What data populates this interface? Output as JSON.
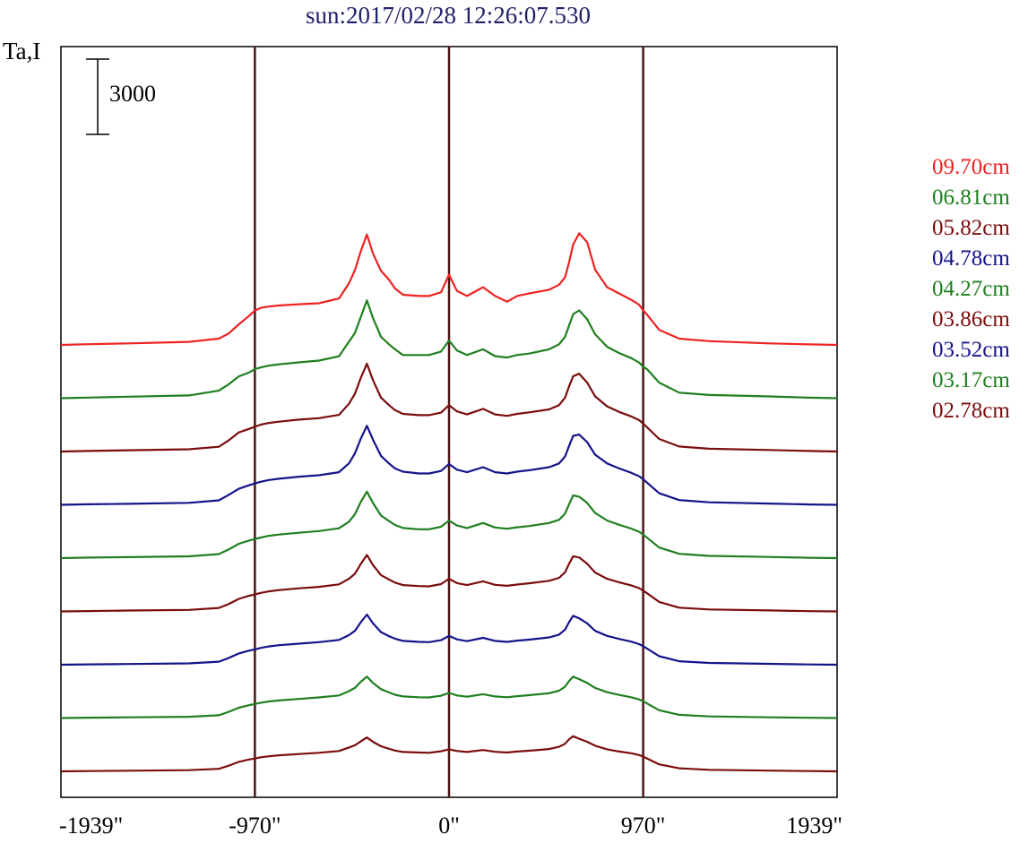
{
  "chart_data": {
    "type": "line",
    "title": "sun:2017/02/28 12:26:07.530",
    "ylabel": "Ta,I",
    "scale_bar_label": "3000",
    "scale_bar_value": 3000,
    "xlim": [
      -1939,
      1939
    ],
    "x_ticks": [
      {
        "value": -1939,
        "label": "-1939\""
      },
      {
        "value": -970,
        "label": "-970\""
      },
      {
        "value": 0,
        "label": "0\""
      },
      {
        "value": 970,
        "label": "970\""
      },
      {
        "value": 1939,
        "label": "1939\""
      }
    ],
    "reference_lines": [
      -970,
      0,
      970
    ],
    "grid": false,
    "legend_position": "right",
    "x": [
      -1939,
      -1800,
      -1600,
      -1300,
      -1150,
      -1100,
      -1050,
      -1000,
      -970,
      -940,
      -900,
      -850,
      -750,
      -650,
      -550,
      -500,
      -470,
      -440,
      -410,
      -380,
      -340,
      -300,
      -270,
      -230,
      -150,
      -100,
      -40,
      0,
      40,
      90,
      170,
      230,
      290,
      340,
      400,
      500,
      550,
      580,
      600,
      620,
      650,
      690,
      730,
      790,
      850,
      910,
      950,
      970,
      990,
      1050,
      1150,
      1300,
      1600,
      1800,
      1939
    ],
    "series": [
      {
        "name": "09.70cm",
        "color": "#ee2222",
        "values": [
          0,
          30,
          60,
          120,
          250,
          460,
          820,
          1150,
          1370,
          1480,
          1530,
          1570,
          1620,
          1660,
          1850,
          2450,
          2980,
          3750,
          4400,
          3650,
          2950,
          2600,
          2250,
          2000,
          1950,
          1950,
          2100,
          2800,
          2150,
          1950,
          2300,
          1950,
          1720,
          1950,
          2050,
          2200,
          2400,
          2700,
          3300,
          4000,
          4450,
          4100,
          3000,
          2300,
          2050,
          1800,
          1600,
          1380,
          1200,
          600,
          250,
          150,
          60,
          20,
          0
        ]
      },
      {
        "name": "06.81cm",
        "color": "#1f7f1f",
        "values": [
          0,
          25,
          60,
          110,
          300,
          560,
          870,
          1020,
          1160,
          1230,
          1300,
          1350,
          1430,
          1500,
          1670,
          2250,
          2600,
          3250,
          3900,
          3200,
          2450,
          2150,
          1950,
          1720,
          1720,
          1720,
          1860,
          2300,
          1900,
          1720,
          1950,
          1680,
          1620,
          1720,
          1780,
          1950,
          2150,
          2450,
          2900,
          3350,
          3500,
          3150,
          2550,
          2050,
          1800,
          1600,
          1420,
          1260,
          1150,
          620,
          220,
          130,
          70,
          20,
          0
        ]
      },
      {
        "name": "05.82cm",
        "color": "#7a0d0d",
        "values": [
          0,
          20,
          50,
          90,
          190,
          450,
          760,
          900,
          990,
          1070,
          1140,
          1190,
          1270,
          1330,
          1460,
          1900,
          2300,
          2950,
          3500,
          2850,
          2150,
          1850,
          1650,
          1500,
          1450,
          1450,
          1550,
          1850,
          1600,
          1480,
          1700,
          1480,
          1420,
          1500,
          1560,
          1680,
          1850,
          2150,
          2600,
          3000,
          3100,
          2750,
          2200,
          1800,
          1580,
          1400,
          1250,
          1120,
          960,
          500,
          200,
          110,
          60,
          20,
          0
        ]
      },
      {
        "name": "04.78cm",
        "color": "#14148a",
        "values": [
          0,
          20,
          40,
          80,
          180,
          400,
          640,
          780,
          850,
          920,
          990,
          1040,
          1120,
          1180,
          1300,
          1650,
          2050,
          2650,
          3150,
          2600,
          1950,
          1650,
          1450,
          1320,
          1250,
          1250,
          1350,
          1630,
          1400,
          1300,
          1500,
          1300,
          1250,
          1320,
          1380,
          1500,
          1650,
          1930,
          2350,
          2750,
          2800,
          2500,
          2000,
          1650,
          1450,
          1280,
          1140,
          1020,
          880,
          460,
          190,
          100,
          50,
          15,
          0
        ]
      },
      {
        "name": "04.27cm",
        "color": "#1f7f1f",
        "values": [
          0,
          20,
          40,
          70,
          160,
          350,
          570,
          700,
          760,
          820,
          890,
          940,
          1010,
          1080,
          1190,
          1450,
          1750,
          2250,
          2650,
          2200,
          1700,
          1480,
          1320,
          1200,
          1150,
          1150,
          1250,
          1500,
          1300,
          1200,
          1400,
          1220,
          1170,
          1230,
          1280,
          1400,
          1530,
          1780,
          2150,
          2500,
          2450,
          2200,
          1800,
          1500,
          1330,
          1180,
          1050,
          940,
          810,
          420,
          170,
          90,
          45,
          15,
          0
        ]
      },
      {
        "name": "03.86cm",
        "color": "#7a0d0d",
        "values": [
          0,
          15,
          35,
          60,
          140,
          300,
          500,
          620,
          680,
          740,
          800,
          850,
          920,
          980,
          1080,
          1300,
          1500,
          1900,
          2250,
          1850,
          1450,
          1270,
          1150,
          1050,
          1010,
          1000,
          1090,
          1300,
          1130,
          1050,
          1200,
          1060,
          1020,
          1070,
          1120,
          1220,
          1340,
          1560,
          1900,
          2200,
          2150,
          1900,
          1550,
          1300,
          1160,
          1040,
          930,
          830,
          720,
          380,
          150,
          80,
          40,
          10,
          0
        ]
      },
      {
        "name": "03.52cm",
        "color": "#14148a",
        "values": [
          0,
          15,
          30,
          55,
          120,
          270,
          450,
          560,
          610,
          670,
          730,
          780,
          840,
          900,
          990,
          1180,
          1350,
          1700,
          2000,
          1650,
          1300,
          1140,
          1040,
          950,
          910,
          900,
          980,
          1150,
          1010,
          940,
          1070,
          950,
          910,
          960,
          1000,
          1090,
          1200,
          1400,
          1700,
          1950,
          1850,
          1650,
          1350,
          1150,
          1030,
          920,
          820,
          740,
          640,
          340,
          140,
          70,
          35,
          10,
          0
        ]
      },
      {
        "name": "03.17cm",
        "color": "#1f7f1f",
        "values": [
          0,
          15,
          30,
          50,
          110,
          250,
          410,
          510,
          560,
          610,
          660,
          700,
          760,
          820,
          900,
          1070,
          1200,
          1450,
          1650,
          1400,
          1150,
          1020,
          930,
          860,
          830,
          820,
          890,
          1000,
          900,
          850,
          950,
          860,
          830,
          870,
          910,
          990,
          1090,
          1250,
          1480,
          1650,
          1550,
          1400,
          1200,
          1030,
          920,
          830,
          740,
          670,
          580,
          310,
          130,
          65,
          30,
          10,
          0
        ]
      },
      {
        "name": "02.78cm",
        "color": "#7a0d0d",
        "values": [
          0,
          10,
          25,
          45,
          100,
          230,
          380,
          470,
          510,
          560,
          600,
          640,
          690,
          740,
          810,
          950,
          1040,
          1200,
          1350,
          1180,
          1000,
          900,
          830,
          770,
          750,
          740,
          800,
          880,
          810,
          770,
          850,
          780,
          750,
          790,
          820,
          890,
          980,
          1100,
          1280,
          1400,
          1300,
          1180,
          1020,
          880,
          790,
          720,
          650,
          590,
          510,
          280,
          120,
          60,
          30,
          10,
          0
        ]
      }
    ]
  }
}
